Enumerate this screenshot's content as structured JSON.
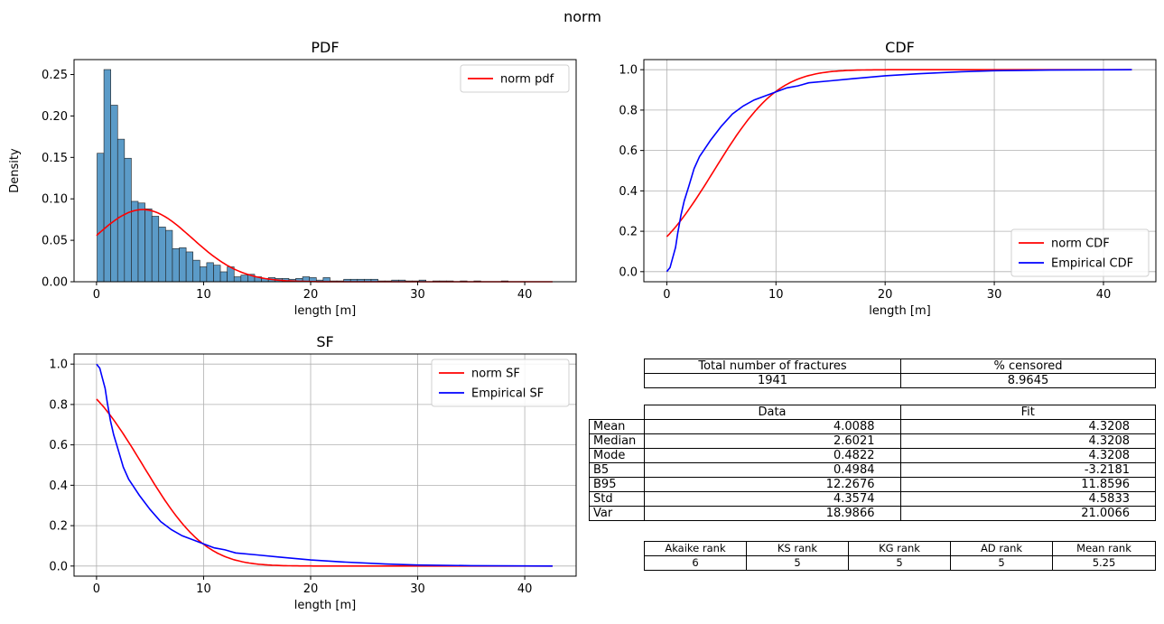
{
  "suptitle": "norm",
  "chart_data": [
    {
      "type": "bar",
      "panel": "pdf",
      "title": "PDF",
      "xlabel": "length [m]",
      "ylabel": "Density",
      "xlim": [
        -2.1,
        44.8
      ],
      "ylim": [
        0,
        0.268
      ],
      "xticks": [
        0,
        10,
        20,
        30,
        40
      ],
      "yticks": [
        0.0,
        0.05,
        0.1,
        0.15,
        0.2,
        0.25
      ],
      "grid": false,
      "legend": {
        "placement": "top-right",
        "entries": [
          "norm pdf"
        ]
      },
      "hist": {
        "bin_width": 0.64,
        "start": 0.05,
        "values": [
          0.155,
          0.256,
          0.213,
          0.172,
          0.149,
          0.097,
          0.095,
          0.088,
          0.079,
          0.066,
          0.062,
          0.04,
          0.041,
          0.036,
          0.026,
          0.018,
          0.023,
          0.02,
          0.012,
          0.018,
          0.006,
          0.008,
          0.009,
          0.006,
          0.004,
          0.005,
          0.004,
          0.004,
          0.003,
          0.004,
          0.006,
          0.005,
          0.002,
          0.005,
          0.001,
          0.001,
          0.003,
          0.003,
          0.003,
          0.003,
          0.003,
          0.001,
          0.001,
          0.002,
          0.002,
          0.001,
          0.001,
          0.002,
          0.0,
          0.001,
          0.001,
          0.001,
          0.0,
          0.001,
          0.0,
          0.001,
          0.0,
          0.0,
          0.0,
          0.001,
          0.0,
          0.0,
          0.0,
          0.0,
          0.0,
          0.0
        ]
      },
      "series": [
        {
          "name": "norm pdf",
          "color": "#ff0000",
          "dist": "norm",
          "mu": 4.3208,
          "sigma": 4.5833,
          "func": "pdf",
          "x_range": [
            0,
            42.6
          ]
        }
      ]
    },
    {
      "type": "line",
      "panel": "cdf",
      "title": "CDF",
      "xlabel": "length [m]",
      "ylabel": "",
      "xlim": [
        -2.1,
        44.8
      ],
      "ylim": [
        -0.05,
        1.05
      ],
      "xticks": [
        0,
        10,
        20,
        30,
        40
      ],
      "yticks": [
        0.0,
        0.2,
        0.4,
        0.6,
        0.8,
        1.0
      ],
      "grid": true,
      "legend": {
        "placement": "bottom-right",
        "entries": [
          "norm CDF",
          "Empirical CDF"
        ]
      },
      "series": [
        {
          "name": "norm CDF",
          "color": "#ff0000",
          "dist": "norm",
          "mu": 4.3208,
          "sigma": 4.5833,
          "func": "cdf",
          "x_range": [
            0,
            42.6
          ]
        },
        {
          "name": "Empirical CDF",
          "color": "#0000ff",
          "x": [
            0,
            0.3,
            0.5,
            0.8,
            1.0,
            1.3,
            1.6,
            2.0,
            2.5,
            3.0,
            3.5,
            4.0,
            5.0,
            6.0,
            7.0,
            8.0,
            9.0,
            10.0,
            11.0,
            12.0,
            13.0,
            15.0,
            17.0,
            20.0,
            23.0,
            27.0,
            30.0,
            35.0,
            42.6
          ],
          "y": [
            0,
            0.02,
            0.06,
            0.12,
            0.19,
            0.28,
            0.35,
            0.42,
            0.51,
            0.57,
            0.61,
            0.65,
            0.72,
            0.78,
            0.82,
            0.85,
            0.87,
            0.89,
            0.91,
            0.92,
            0.935,
            0.945,
            0.955,
            0.97,
            0.98,
            0.99,
            0.995,
            0.998,
            1.0
          ]
        }
      ]
    },
    {
      "type": "line",
      "panel": "sf",
      "title": "SF",
      "xlabel": "length [m]",
      "ylabel": "",
      "xlim": [
        -2.1,
        44.8
      ],
      "ylim": [
        -0.05,
        1.05
      ],
      "xticks": [
        0,
        10,
        20,
        30,
        40
      ],
      "yticks": [
        0.0,
        0.2,
        0.4,
        0.6,
        0.8,
        1.0
      ],
      "grid": true,
      "legend": {
        "placement": "top-right",
        "entries": [
          "norm SF",
          "Empirical SF"
        ]
      },
      "series": [
        {
          "name": "norm SF",
          "color": "#ff0000",
          "dist": "norm",
          "mu": 4.3208,
          "sigma": 4.5833,
          "func": "sf",
          "x_range": [
            0,
            42.6
          ]
        },
        {
          "name": "Empirical SF",
          "color": "#0000ff",
          "x": [
            0,
            0.3,
            0.5,
            0.8,
            1.0,
            1.3,
            1.6,
            2.0,
            2.5,
            3.0,
            3.5,
            4.0,
            5.0,
            6.0,
            7.0,
            8.0,
            9.0,
            10.0,
            11.0,
            12.0,
            13.0,
            15.0,
            17.0,
            20.0,
            23.0,
            27.0,
            30.0,
            35.0,
            42.6
          ],
          "y": [
            1.0,
            0.98,
            0.94,
            0.88,
            0.81,
            0.72,
            0.65,
            0.58,
            0.49,
            0.43,
            0.39,
            0.35,
            0.28,
            0.22,
            0.18,
            0.15,
            0.13,
            0.11,
            0.09,
            0.08,
            0.065,
            0.055,
            0.045,
            0.03,
            0.02,
            0.01,
            0.005,
            0.002,
            0.0
          ]
        }
      ]
    }
  ],
  "table_summary": {
    "headers": [
      "Total number of fractures",
      "% censored"
    ],
    "values": [
      "1941",
      "8.9645"
    ]
  },
  "table_stats": {
    "headers": [
      "Data",
      "Fit"
    ],
    "rows": [
      {
        "label": "Mean",
        "data": "4.0088",
        "fit": "4.3208"
      },
      {
        "label": "Median",
        "data": "2.6021",
        "fit": "4.3208"
      },
      {
        "label": "Mode",
        "data": "0.4822",
        "fit": "4.3208"
      },
      {
        "label": "B5",
        "data": "0.4984",
        "fit": "-3.2181"
      },
      {
        "label": "B95",
        "data": "12.2676",
        "fit": "11.8596"
      },
      {
        "label": "Std",
        "data": "4.3574",
        "fit": "4.5833"
      },
      {
        "label": "Var",
        "data": "18.9866",
        "fit": "21.0066"
      }
    ]
  },
  "table_ranks": {
    "headers": [
      "Akaike rank",
      "KS rank",
      "KG rank",
      "AD rank",
      "Mean rank"
    ],
    "values": [
      "6",
      "5",
      "5",
      "5",
      "5.25"
    ]
  }
}
